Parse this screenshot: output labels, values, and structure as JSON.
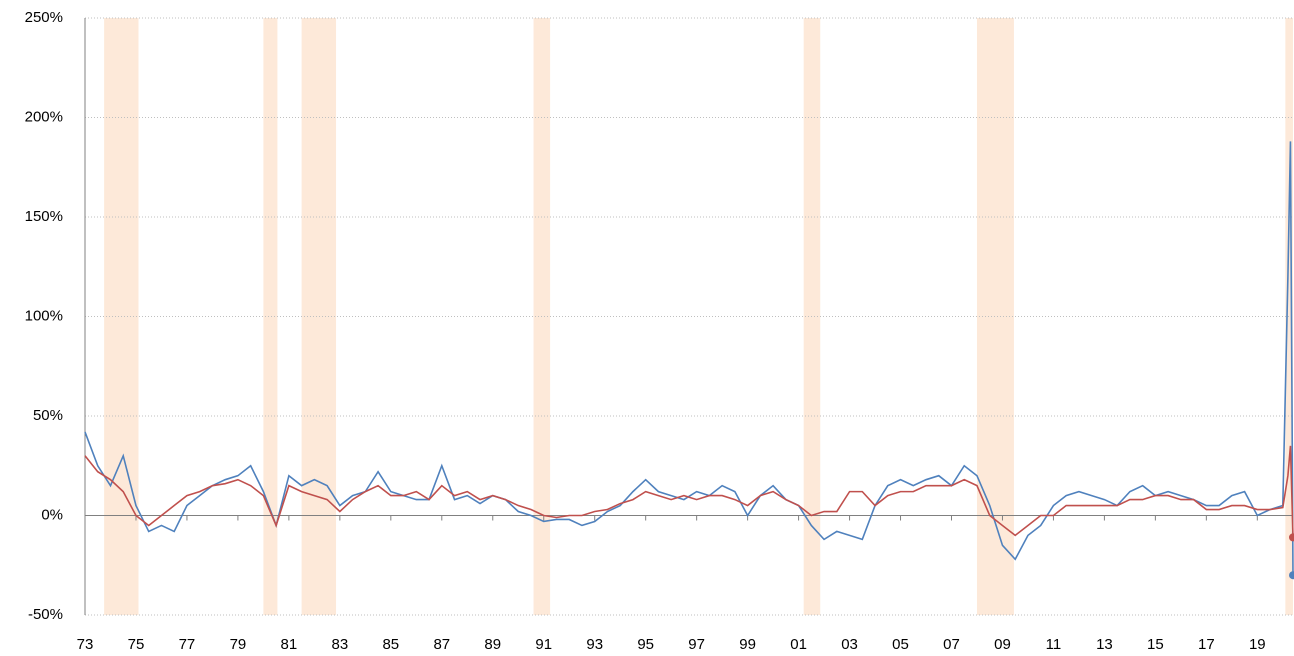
{
  "chart_data": {
    "type": "line",
    "x": [
      1973.0,
      1973.5,
      1974.0,
      1974.5,
      1975.0,
      1975.5,
      1976.0,
      1976.5,
      1977.0,
      1977.5,
      1978.0,
      1978.5,
      1979.0,
      1979.5,
      1980.0,
      1980.5,
      1981.0,
      1981.5,
      1982.0,
      1982.5,
      1983.0,
      1983.5,
      1984.0,
      1984.5,
      1985.0,
      1985.5,
      1986.0,
      1986.5,
      1987.0,
      1987.5,
      1988.0,
      1988.5,
      1989.0,
      1989.5,
      1990.0,
      1990.5,
      1991.0,
      1991.5,
      1992.0,
      1992.5,
      1993.0,
      1993.5,
      1994.0,
      1994.5,
      1995.0,
      1995.5,
      1996.0,
      1996.5,
      1997.0,
      1997.5,
      1998.0,
      1998.5,
      1999.0,
      1999.5,
      2000.0,
      2000.5,
      2001.0,
      2001.5,
      2002.0,
      2002.5,
      2003.0,
      2003.5,
      2004.0,
      2004.5,
      2005.0,
      2005.5,
      2006.0,
      2006.5,
      2007.0,
      2007.5,
      2008.0,
      2008.5,
      2009.0,
      2009.5,
      2010.0,
      2010.5,
      2011.0,
      2011.5,
      2012.0,
      2012.5,
      2013.0,
      2013.5,
      2014.0,
      2014.5,
      2015.0,
      2015.5,
      2016.0,
      2016.5,
      2017.0,
      2017.5,
      2018.0,
      2018.5,
      2019.0,
      2019.5,
      2020.0,
      2020.2,
      2020.3,
      2020.4
    ],
    "series": [
      {
        "color": "#4f81bd",
        "values": [
          42,
          25,
          15,
          30,
          5,
          -8,
          -5,
          -8,
          5,
          10,
          15,
          18,
          20,
          25,
          12,
          -5,
          20,
          15,
          18,
          15,
          5,
          10,
          12,
          22,
          12,
          10,
          8,
          8,
          25,
          8,
          10,
          6,
          10,
          8,
          2,
          0,
          -3,
          -2,
          -2,
          -5,
          -3,
          2,
          5,
          12,
          18,
          12,
          10,
          8,
          12,
          10,
          15,
          12,
          0,
          10,
          15,
          8,
          5,
          -5,
          -12,
          -8,
          -10,
          -12,
          5,
          15,
          18,
          15,
          18,
          20,
          15,
          25,
          20,
          5,
          -15,
          -22,
          -10,
          -5,
          5,
          10,
          12,
          10,
          8,
          5,
          12,
          15,
          10,
          12,
          10,
          8,
          5,
          5,
          10,
          12,
          0,
          3,
          5,
          120,
          188,
          -30
        ]
      },
      {
        "color": "#c0504d",
        "values": [
          30,
          22,
          18,
          12,
          0,
          -5,
          0,
          5,
          10,
          12,
          15,
          16,
          18,
          15,
          10,
          -5,
          15,
          12,
          10,
          8,
          2,
          8,
          12,
          15,
          10,
          10,
          12,
          8,
          15,
          10,
          12,
          8,
          10,
          8,
          5,
          3,
          0,
          -1,
          0,
          0,
          2,
          3,
          6,
          8,
          12,
          10,
          8,
          10,
          8,
          10,
          10,
          8,
          5,
          10,
          12,
          8,
          5,
          0,
          2,
          2,
          12,
          12,
          5,
          10,
          12,
          12,
          15,
          15,
          15,
          18,
          15,
          0,
          -5,
          -10,
          -5,
          0,
          0,
          5,
          5,
          5,
          5,
          5,
          8,
          8,
          10,
          10,
          8,
          8,
          3,
          3,
          5,
          5,
          3,
          3,
          4,
          20,
          35,
          -11
        ]
      }
    ],
    "shaded_periods": [
      [
        1973.75,
        1975.1
      ],
      [
        1980.0,
        1980.55
      ],
      [
        1981.5,
        1982.85
      ],
      [
        1990.6,
        1991.25
      ],
      [
        2001.2,
        2001.85
      ],
      [
        2008.0,
        2009.45
      ],
      [
        2020.1,
        2020.4
      ]
    ],
    "shade_color": "#fde9d9",
    "xlim": [
      1973,
      2020.4
    ],
    "xticks": [
      {
        "value": 1973,
        "label": "73"
      },
      {
        "value": 1975,
        "label": "75"
      },
      {
        "value": 1977,
        "label": "77"
      },
      {
        "value": 1979,
        "label": "79"
      },
      {
        "value": 1981,
        "label": "81"
      },
      {
        "value": 1983,
        "label": "83"
      },
      {
        "value": 1985,
        "label": "85"
      },
      {
        "value": 1987,
        "label": "87"
      },
      {
        "value": 1989,
        "label": "89"
      },
      {
        "value": 1991,
        "label": "91"
      },
      {
        "value": 1993,
        "label": "93"
      },
      {
        "value": 1995,
        "label": "95"
      },
      {
        "value": 1997,
        "label": "97"
      },
      {
        "value": 1999,
        "label": "99"
      },
      {
        "value": 2001,
        "label": "01"
      },
      {
        "value": 2003,
        "label": "03"
      },
      {
        "value": 2005,
        "label": "05"
      },
      {
        "value": 2007,
        "label": "07"
      },
      {
        "value": 2009,
        "label": "09"
      },
      {
        "value": 2011,
        "label": "11"
      },
      {
        "value": 2013,
        "label": "13"
      },
      {
        "value": 2015,
        "label": "15"
      },
      {
        "value": 2017,
        "label": "17"
      },
      {
        "value": 2019,
        "label": "19"
      }
    ],
    "ylim": [
      -50,
      250
    ],
    "yticks": [
      {
        "value": -50,
        "label": "-50%"
      },
      {
        "value": 0,
        "label": "0%"
      },
      {
        "value": 50,
        "label": "50%"
      },
      {
        "value": 100,
        "label": "100%"
      },
      {
        "value": 150,
        "label": "150%"
      },
      {
        "value": 200,
        "label": "200%"
      },
      {
        "value": 250,
        "label": "250%"
      }
    ],
    "grid": true
  }
}
